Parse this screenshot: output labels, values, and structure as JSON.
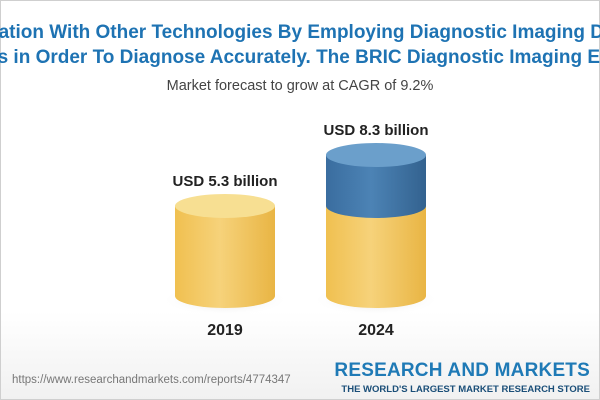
{
  "header": {
    "line1": "nation With Other Technologies By Employing Diagnostic Imaging Devices, T",
    "line2": "es in Order To Diagnose Accurately. The BRIC Diagnostic Imaging Equipmen"
  },
  "subtitle": "Market forecast to grow at CAGR of 9.2%",
  "chart_data": {
    "type": "bar",
    "categories": [
      "2019",
      "2024"
    ],
    "values": [
      5.3,
      8.3
    ],
    "value_labels": [
      "USD 5.3 billion",
      "USD 8.3 billion"
    ],
    "unit": "USD billion",
    "title": "Market forecast to grow at CAGR of 9.2%",
    "cagr": "9.2%",
    "colors": {
      "base_top": "#f7df92",
      "base_body": "#f2c65e",
      "growth_top": "#6b9fcb",
      "growth_body": "#3f74a6"
    }
  },
  "footer": {
    "url": "https://www.researchandmarkets.com/reports/4774347",
    "brand_name": "RESEARCH AND MARKETS",
    "brand_tagline": "THE WORLD'S LARGEST MARKET RESEARCH STORE"
  }
}
